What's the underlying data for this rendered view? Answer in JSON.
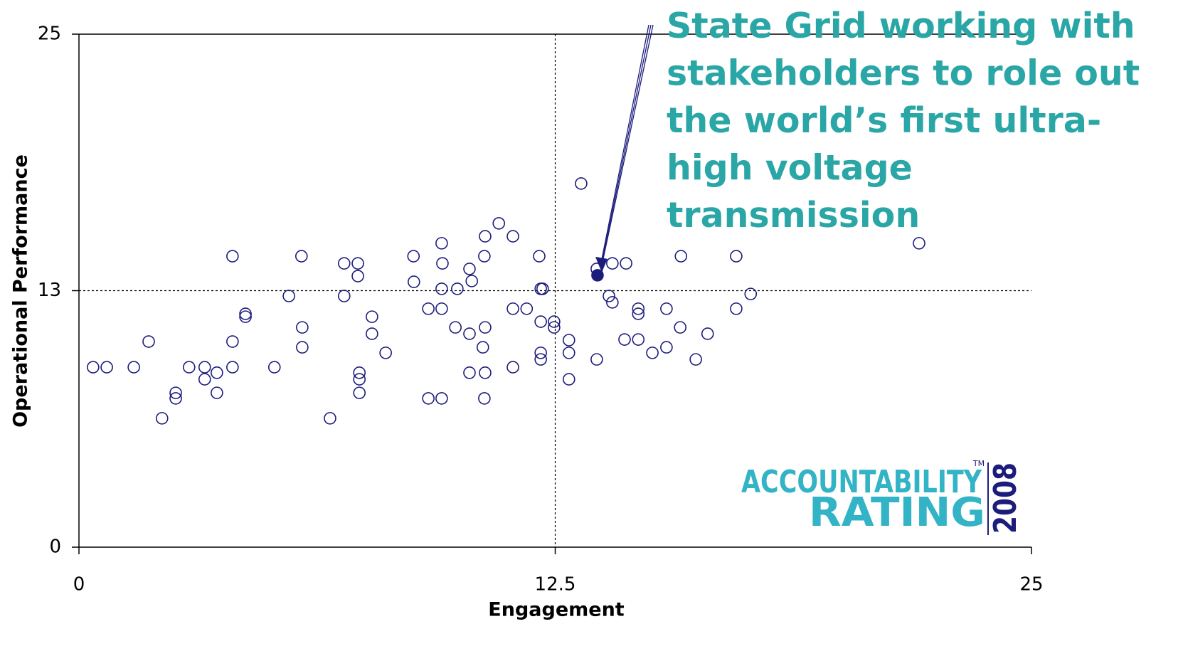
{
  "chart_data": {
    "type": "scatter",
    "x_label": "Engagement",
    "y_label": "Operational Performance",
    "xlim": [
      0,
      25
    ],
    "ylim": [
      0,
      25
    ],
    "xticks": [
      0,
      12.5,
      25
    ],
    "yticks": [
      0,
      {
        "value": 12.5,
        "label": "13"
      },
      25
    ],
    "grid": true,
    "series": [
      {
        "color": "#1c1c7c",
        "marker": "open-circle",
        "x": [
          0.37,
          0.73,
          1.44,
          1.83,
          2.18,
          2.54,
          2.54,
          2.89,
          3.3,
          3.3,
          3.62,
          3.62,
          4.03,
          4.03,
          4.03,
          4.37,
          4.37,
          5.13,
          5.51,
          5.84,
          5.86,
          5.86,
          6.59,
          6.96,
          6.96,
          7.32,
          7.32,
          7.36,
          7.36,
          7.36,
          7.69,
          7.69,
          8.05,
          8.78,
          8.79,
          9.17,
          9.17,
          9.52,
          9.54,
          9.52,
          9.52,
          9.52,
          9.88,
          9.93,
          10.25,
          10.31,
          10.25,
          10.25,
          10.6,
          10.66,
          10.64,
          10.66,
          10.66,
          10.64,
          11.02,
          11.39,
          11.39,
          11.39,
          11.75,
          12.08,
          12.12,
          12.17,
          12.12,
          12.12,
          12.12,
          12.47,
          12.47,
          12.86,
          12.86,
          12.86,
          13.18,
          13.59,
          13.59,
          13.91,
          14.0,
          14.0,
          14.36,
          14.32,
          14.68,
          14.68,
          14.68,
          15.05,
          15.42,
          15.42,
          15.8,
          15.78,
          16.19,
          16.5,
          17.25,
          17.25,
          17.63,
          22.05
        ],
        "values": [
          8.77,
          8.77,
          8.77,
          10.02,
          6.28,
          7.52,
          7.25,
          8.77,
          8.77,
          8.18,
          8.5,
          7.52,
          8.77,
          10.02,
          14.18,
          11.37,
          11.23,
          8.77,
          12.24,
          14.18,
          10.71,
          9.74,
          6.28,
          13.83,
          12.24,
          13.83,
          13.21,
          8.5,
          8.18,
          7.52,
          11.23,
          10.4,
          9.47,
          14.18,
          12.93,
          11.62,
          7.25,
          14.81,
          13.83,
          12.59,
          11.62,
          7.25,
          10.71,
          12.59,
          13.56,
          12.97,
          10.4,
          8.5,
          9.74,
          15.15,
          14.18,
          10.71,
          8.5,
          7.25,
          15.78,
          15.15,
          11.62,
          8.77,
          11.62,
          14.18,
          12.59,
          12.59,
          10.99,
          9.47,
          9.15,
          10.99,
          10.71,
          10.09,
          9.47,
          8.18,
          17.72,
          13.56,
          9.15,
          12.24,
          11.93,
          13.83,
          13.83,
          10.12,
          10.12,
          11.62,
          11.37,
          9.47,
          11.62,
          9.74,
          14.18,
          10.71,
          9.15,
          10.4,
          14.18,
          11.62,
          12.34,
          14.81
        ]
      },
      {
        "color": "#1c1c7c",
        "marker": "filled-circle",
        "x": [
          13.61
        ],
        "values": [
          13.25
        ]
      }
    ],
    "annotation": {
      "lines": [
        "State Grid working with",
        "stakeholders to role out",
        "the world’s first ultra-",
        "high voltage",
        "transmission"
      ],
      "color": "#2ba6a6",
      "x": 13.61,
      "y": 13.25
    },
    "logo": {
      "top": "ACCOUNTABILITY",
      "bottom": "RATING",
      "year": "2008",
      "mark": "TM"
    }
  }
}
